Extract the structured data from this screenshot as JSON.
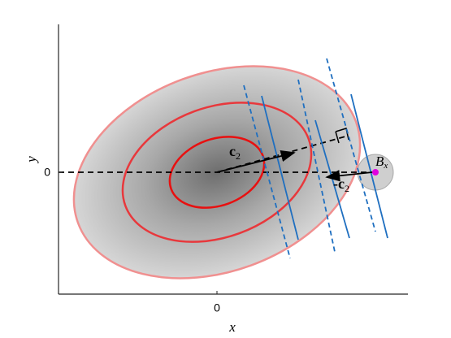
{
  "axes": {
    "x_label": "x",
    "y_label": "y",
    "x_tick": "0",
    "y_tick": "0"
  },
  "annotations": {
    "vector": {
      "symbol": "c",
      "subscript": "2"
    },
    "neg_vector": {
      "symbol": "-c",
      "subscript": "2"
    },
    "ball": {
      "symbol": "B",
      "subscript": "x"
    }
  }
}
